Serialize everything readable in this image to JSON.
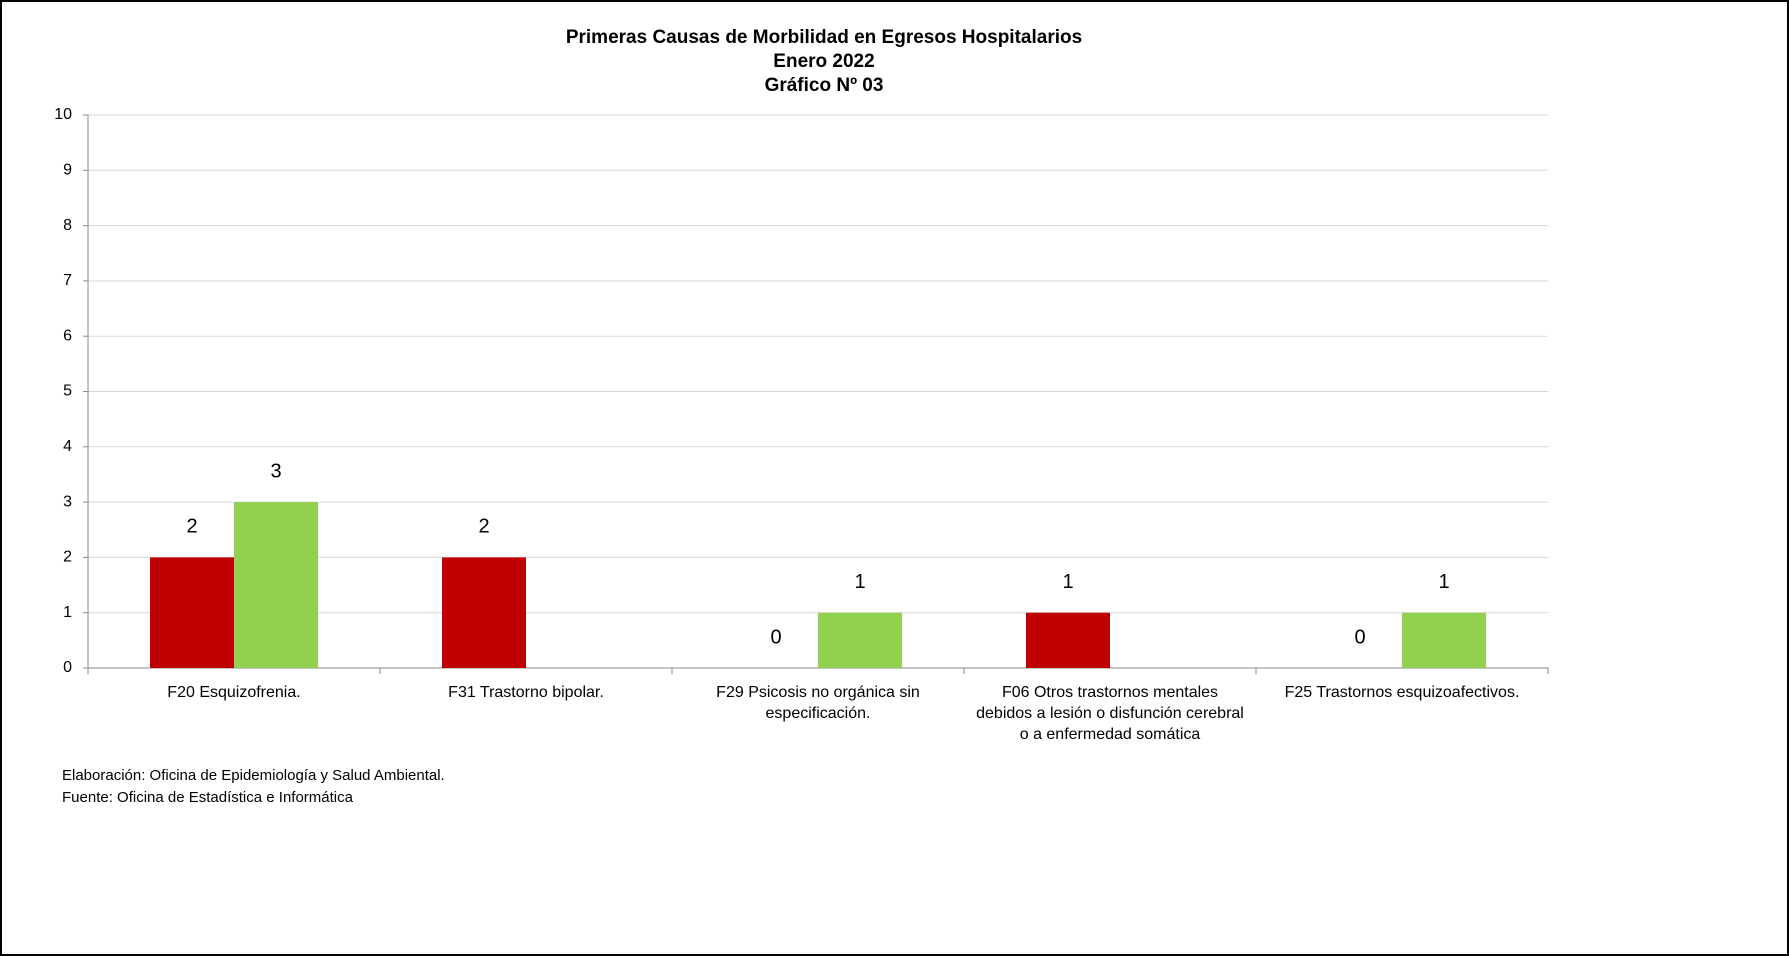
{
  "chart_data": {
    "type": "bar",
    "title": [
      "Primeras Causas de Morbilidad en Egresos Hospitalarios",
      "Enero 2022",
      "Gráfico Nº 03"
    ],
    "categories": [
      "F20 Esquizofrenia.",
      "F31 Trastorno bipolar.",
      "F29 Psicosis no orgánica sin especificación.",
      "F06 Otros trastornos mentales debidos a lesión o disfunción cerebral o a enfermedad somática",
      "F25 Trastornos esquizoafectivos."
    ],
    "series": [
      {
        "color": "#c00000",
        "values": [
          2,
          2,
          0,
          1,
          0
        ]
      },
      {
        "color": "#92d050",
        "values": [
          3,
          null,
          1,
          null,
          1
        ]
      }
    ],
    "ylim": [
      0,
      10
    ],
    "yticks": [
      0,
      1,
      2,
      3,
      4,
      5,
      6,
      7,
      8,
      9,
      10
    ],
    "grid": true,
    "notes": [
      "Elaboración: Oficina de Epidemiología y Salud Ambiental.",
      "Fuente:  Oficina de Estadística e Informática"
    ]
  }
}
